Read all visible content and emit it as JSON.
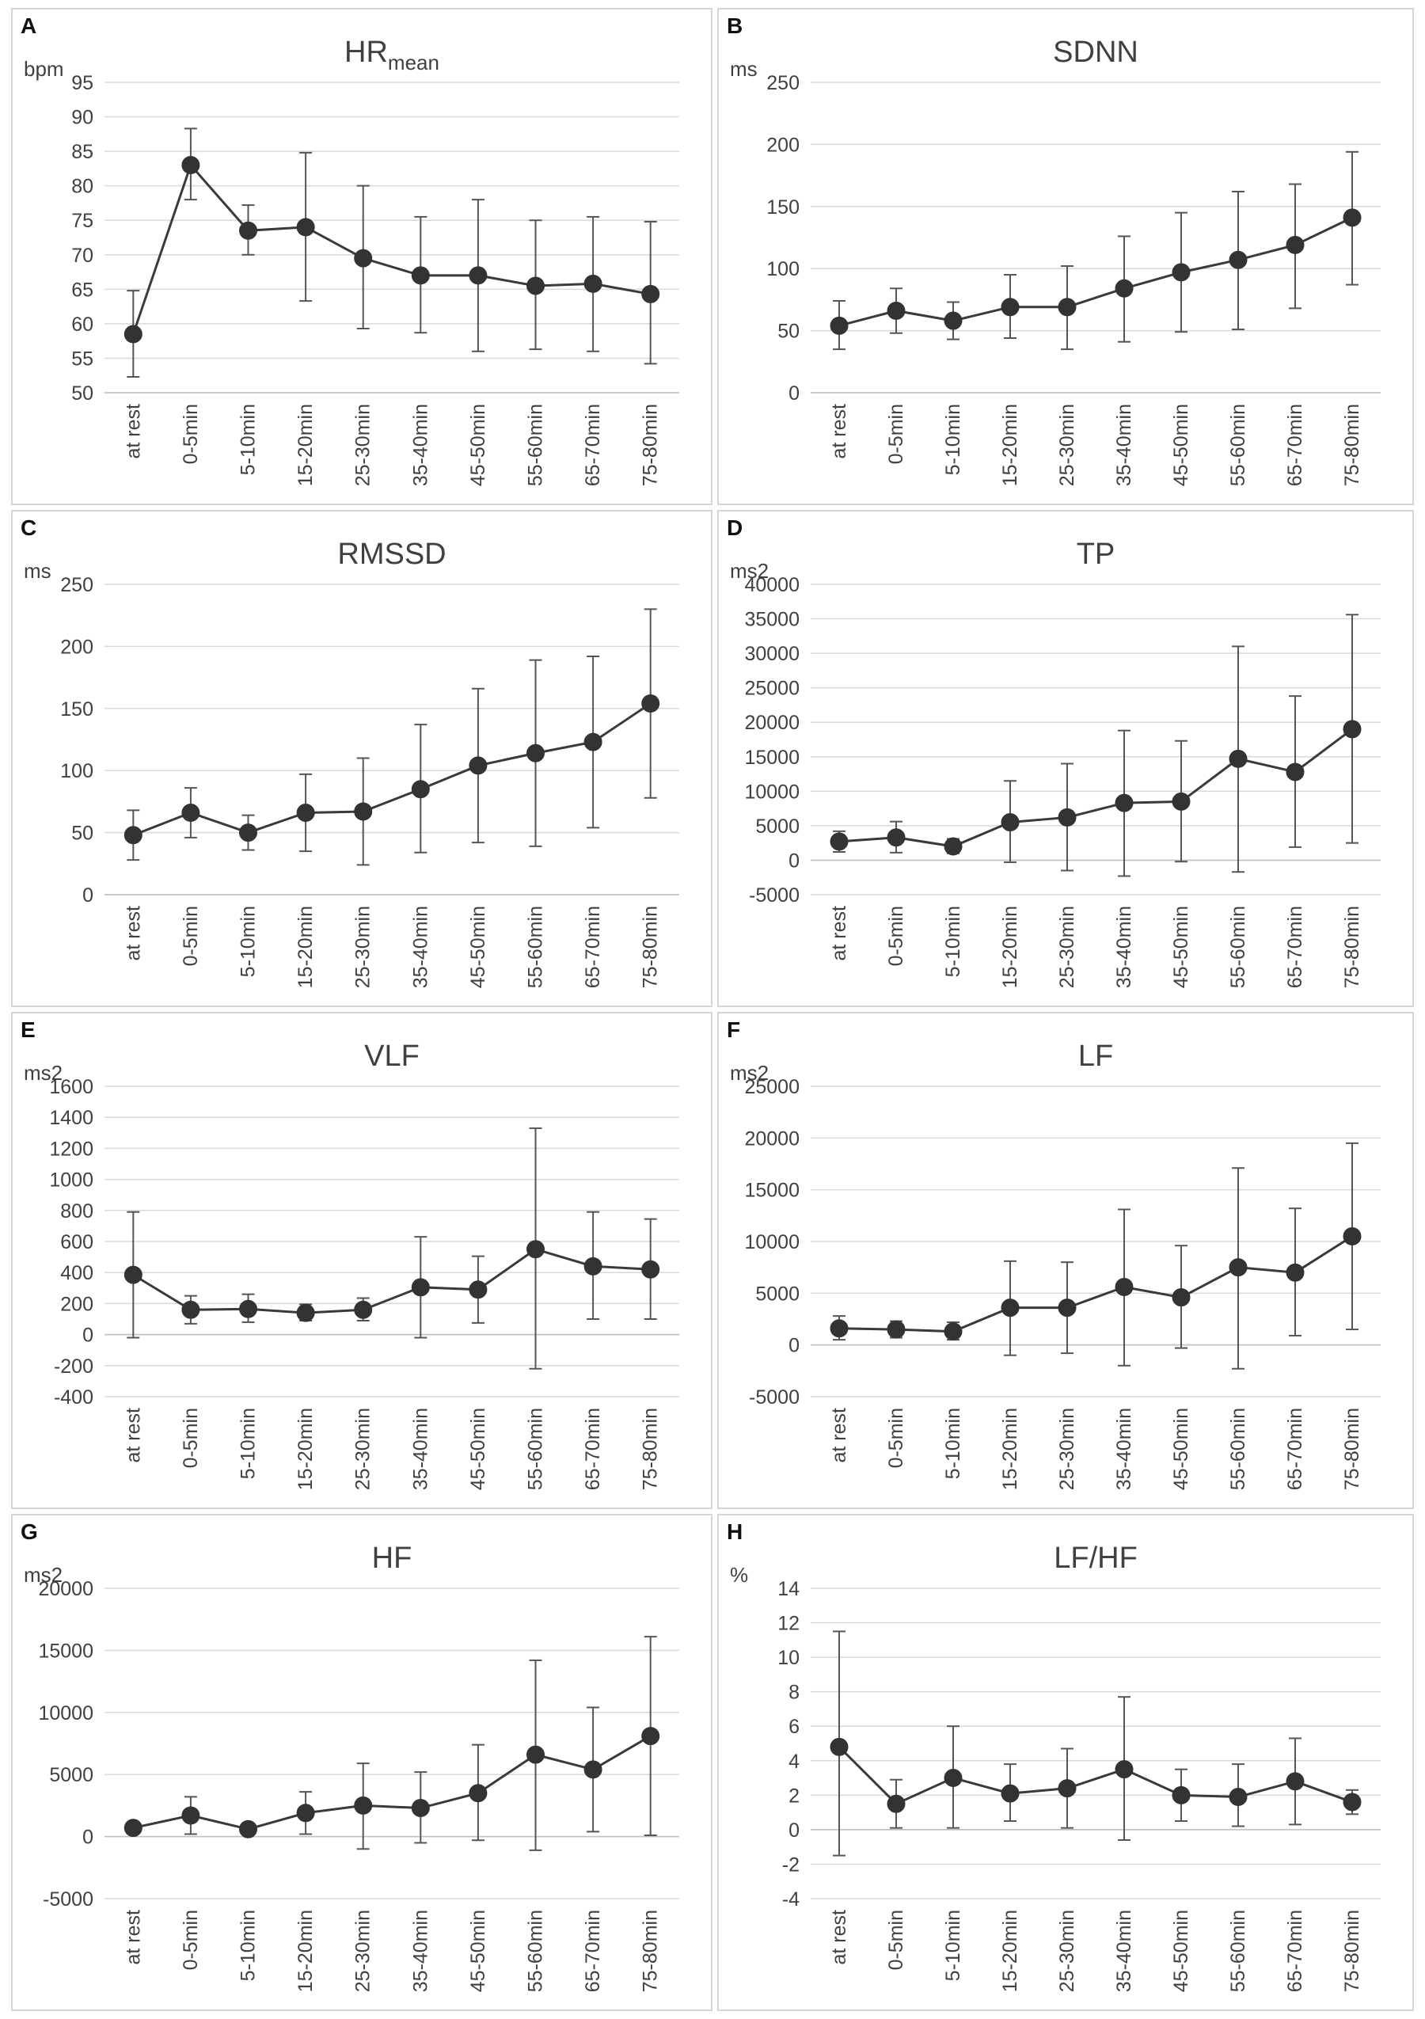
{
  "colors": {
    "line": "#3a3a3a",
    "marker": "#333333",
    "errorbar": "#555555",
    "grid": "#d9d9d9",
    "text": "#404040",
    "panel_border": "#d6d6d6"
  },
  "chart_data": [
    {
      "type": "line",
      "letter": "A",
      "title": "HR",
      "title_sub": "mean",
      "ylabel": "bpm",
      "categories": [
        "at rest",
        "0-5min",
        "5-10min",
        "15-20min",
        "25-30min",
        "35-40min",
        "45-50min",
        "55-60min",
        "65-70min",
        "75-80min"
      ],
      "values": [
        58.5,
        83,
        73.5,
        74,
        69.5,
        67,
        67,
        65.5,
        65.8,
        64.3
      ],
      "error_low": [
        52.3,
        78,
        70,
        63.3,
        59.3,
        58.7,
        56,
        56.3,
        56,
        54.2
      ],
      "error_high": [
        64.8,
        88.3,
        77.2,
        84.8,
        80,
        75.5,
        78,
        75,
        75.5,
        74.8
      ],
      "ylim": [
        50,
        95
      ],
      "yticks": [
        50,
        55,
        60,
        65,
        70,
        75,
        80,
        85,
        90,
        95
      ]
    },
    {
      "type": "line",
      "letter": "B",
      "title": "SDNN",
      "title_sub": "",
      "ylabel": "ms",
      "categories": [
        "at rest",
        "0-5min",
        "5-10min",
        "15-20min",
        "25-30min",
        "35-40min",
        "45-50min",
        "55-60min",
        "65-70min",
        "75-80min"
      ],
      "values": [
        54,
        66,
        58,
        69,
        69,
        84,
        97,
        107,
        119,
        141
      ],
      "error_low": [
        35,
        48,
        43,
        44,
        35,
        41,
        49,
        51,
        68,
        87
      ],
      "error_high": [
        74,
        84,
        73,
        95,
        102,
        126,
        145,
        162,
        168,
        194
      ],
      "ylim": [
        0,
        250
      ],
      "yticks": [
        0,
        50,
        100,
        150,
        200,
        250
      ]
    },
    {
      "type": "line",
      "letter": "C",
      "title": "RMSSD",
      "title_sub": "",
      "ylabel": "ms",
      "categories": [
        "at rest",
        "0-5min",
        "5-10min",
        "15-20min",
        "25-30min",
        "35-40min",
        "45-50min",
        "55-60min",
        "65-70min",
        "75-80min"
      ],
      "values": [
        48,
        66,
        50,
        66,
        67,
        85,
        104,
        114,
        123,
        154
      ],
      "error_low": [
        28,
        46,
        36,
        35,
        24,
        34,
        42,
        39,
        54,
        78
      ],
      "error_high": [
        68,
        86,
        64,
        97,
        110,
        137,
        166,
        189,
        192,
        230
      ],
      "ylim": [
        0,
        250
      ],
      "yticks": [
        0,
        50,
        100,
        150,
        200,
        250
      ]
    },
    {
      "type": "line",
      "letter": "D",
      "title": "TP",
      "title_sub": "",
      "ylabel": "ms2",
      "categories": [
        "at rest",
        "0-5min",
        "5-10min",
        "15-20min",
        "25-30min",
        "35-40min",
        "45-50min",
        "55-60min",
        "65-70min",
        "75-80min"
      ],
      "values": [
        2700,
        3300,
        2000,
        5500,
        6200,
        8300,
        8500,
        14700,
        12800,
        19000
      ],
      "error_low": [
        1200,
        1100,
        1000,
        -300,
        -1500,
        -2300,
        -200,
        -1700,
        1900,
        2500
      ],
      "error_high": [
        4200,
        5600,
        3100,
        11500,
        14000,
        18800,
        17300,
        31000,
        23800,
        35600
      ],
      "ylim": [
        -5000,
        40000
      ],
      "yticks": [
        -5000,
        0,
        5000,
        10000,
        15000,
        20000,
        25000,
        30000,
        35000,
        40000
      ]
    },
    {
      "type": "line",
      "letter": "E",
      "title": "VLF",
      "title_sub": "",
      "ylabel": "ms2",
      "categories": [
        "at rest",
        "0-5min",
        "5-10min",
        "15-20min",
        "25-30min",
        "35-40min",
        "45-50min",
        "55-60min",
        "65-70min",
        "75-80min"
      ],
      "values": [
        385,
        160,
        165,
        140,
        160,
        305,
        290,
        550,
        440,
        420
      ],
      "error_low": [
        -20,
        70,
        80,
        90,
        90,
        -20,
        75,
        -220,
        100,
        100
      ],
      "error_high": [
        790,
        250,
        260,
        195,
        235,
        630,
        505,
        1330,
        790,
        745
      ],
      "ylim": [
        -400,
        1600
      ],
      "yticks": [
        -400,
        -200,
        0,
        200,
        400,
        600,
        800,
        1000,
        1200,
        1400,
        1600
      ]
    },
    {
      "type": "line",
      "letter": "F",
      "title": "LF",
      "title_sub": "",
      "ylabel": "ms2",
      "categories": [
        "at rest",
        "0-5min",
        "5-10min",
        "15-20min",
        "25-30min",
        "35-40min",
        "45-50min",
        "55-60min",
        "65-70min",
        "75-80min"
      ],
      "values": [
        1600,
        1500,
        1300,
        3600,
        3600,
        5600,
        4600,
        7500,
        7000,
        10500
      ],
      "error_low": [
        500,
        700,
        500,
        -1000,
        -800,
        -2000,
        -300,
        -2300,
        900,
        1500
      ],
      "error_high": [
        2800,
        2300,
        2200,
        8100,
        8000,
        13100,
        9600,
        17100,
        13200,
        19500
      ],
      "ylim": [
        -5000,
        25000
      ],
      "yticks": [
        -5000,
        0,
        5000,
        10000,
        15000,
        20000,
        25000
      ]
    },
    {
      "type": "line",
      "letter": "G",
      "title": "HF",
      "title_sub": "",
      "ylabel": "ms2",
      "categories": [
        "at rest",
        "0-5min",
        "5-10min",
        "15-20min",
        "25-30min",
        "35-40min",
        "45-50min",
        "55-60min",
        "65-70min",
        "75-80min"
      ],
      "values": [
        700,
        1700,
        600,
        1900,
        2500,
        2300,
        3500,
        6600,
        5400,
        8100
      ],
      "error_low": [
        300,
        200,
        400,
        200,
        -1000,
        -500,
        -300,
        -1100,
        400,
        100
      ],
      "error_high": [
        1100,
        3200,
        800,
        3600,
        5900,
        5200,
        7400,
        14200,
        10400,
        16100
      ],
      "ylim": [
        -5000,
        20000
      ],
      "yticks": [
        -5000,
        0,
        5000,
        10000,
        15000,
        20000
      ]
    },
    {
      "type": "line",
      "letter": "H",
      "title": "LF/HF",
      "title_sub": "",
      "ylabel": "%",
      "categories": [
        "at rest",
        "0-5min",
        "5-10min",
        "15-20min",
        "25-30min",
        "35-40min",
        "45-50min",
        "55-60min",
        "65-70min",
        "75-80min"
      ],
      "values": [
        4.8,
        1.5,
        3.0,
        2.1,
        2.4,
        3.5,
        2.0,
        1.9,
        2.8,
        1.6
      ],
      "error_low": [
        -1.5,
        0.1,
        0.1,
        0.5,
        0.1,
        -0.6,
        0.5,
        0.2,
        0.3,
        0.9
      ],
      "error_high": [
        11.5,
        2.9,
        6.0,
        3.8,
        4.7,
        7.7,
        3.5,
        3.8,
        5.3,
        2.3
      ],
      "ylim": [
        -4,
        14
      ],
      "yticks": [
        -4,
        -2,
        0,
        2,
        4,
        6,
        8,
        10,
        12,
        14
      ]
    }
  ]
}
